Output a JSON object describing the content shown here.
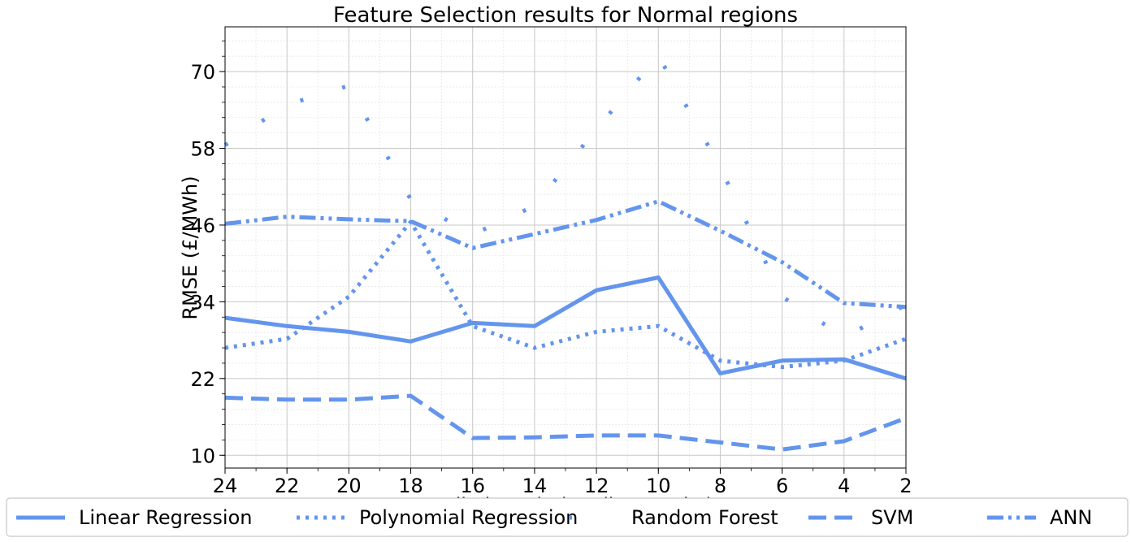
{
  "chart_data": {
    "type": "line",
    "title": "Feature Selection results for Normal regions",
    "xlabel": "Prediction window (in months)",
    "ylabel": "RMSE (£/MWh)",
    "x": [
      24,
      22,
      20,
      18,
      16,
      14,
      12,
      10,
      8,
      6,
      4,
      2
    ],
    "xlim": [
      24,
      2
    ],
    "ylim": [
      8,
      77
    ],
    "xticks": [
      "24",
      "22",
      "20",
      "18",
      "16",
      "14",
      "12",
      "10",
      "8",
      "6",
      "4",
      "2"
    ],
    "yticks": [
      "10",
      "22",
      "34",
      "46",
      "58",
      "70"
    ],
    "grid": true,
    "legend_position": "bottom",
    "color": "#6495ed",
    "series": [
      {
        "name": "Linear Regression",
        "style": "solid",
        "values": [
          31.5,
          30.2,
          29.3,
          27.8,
          30.7,
          30.2,
          35.8,
          37.8,
          22.8,
          24.8,
          25.0,
          22.0
        ]
      },
      {
        "name": "Polynomial Regression",
        "style": "dotted",
        "values": [
          26.8,
          28.2,
          34.8,
          46.5,
          30.2,
          26.8,
          29.3,
          30.2,
          24.8,
          23.8,
          24.8,
          28.2
        ]
      },
      {
        "name": "Random Forest",
        "style": "sparse-dotted",
        "values": [
          58.5,
          64.8,
          67.8,
          50.0,
          44.5,
          49.0,
          61.0,
          72.5,
          55.0,
          34.8,
          28.5,
          33.5
        ]
      },
      {
        "name": "SVM",
        "style": "dashed",
        "values": [
          19.0,
          18.7,
          18.7,
          19.3,
          12.7,
          12.8,
          13.1,
          13.1,
          12.0,
          10.9,
          12.2,
          15.8
        ]
      },
      {
        "name": "ANN",
        "style": "dashdot",
        "values": [
          46.2,
          47.3,
          46.9,
          46.6,
          42.4,
          44.6,
          46.8,
          49.7,
          45.1,
          40.2,
          33.8,
          33.2
        ]
      }
    ]
  }
}
